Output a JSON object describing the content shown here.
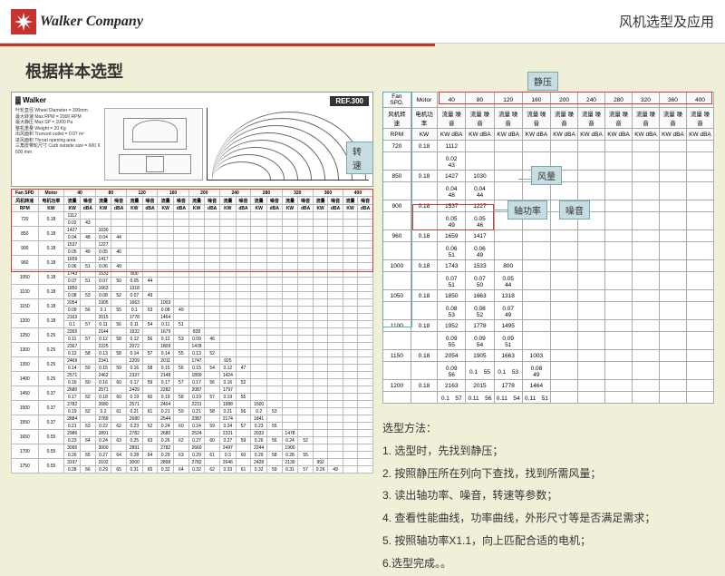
{
  "header": {
    "company": "Walker Company",
    "right_text": "风机选型及应用"
  },
  "title": "根据样本选型",
  "diagram": {
    "brand": "Walker",
    "ref": "REF.300",
    "specs": "叶轮直径 Wheel Diameter = 300mm\n最大转速 Max RPM = 2000 RPM\n最大静压 Max SP = 1000 Pa\n整机重量 Weight = 20 Kg\n出风面积 Trunced outlet = 0.07 m²\n进风面积 Throat opening area\n三角皮带轮尺寸 Curb outside size = 600 X 600 mm"
  },
  "tags": {
    "zhuansu": "转速",
    "jingya": "静压",
    "fengliang": "风量",
    "zhougl": "轴功率",
    "zaoyin": "噪音"
  },
  "right_table": {
    "headers": [
      "Fan SPD.",
      "Motor",
      "40",
      "80",
      "120",
      "160",
      "200",
      "240",
      "280",
      "320",
      "360",
      "400"
    ],
    "sub1": [
      "风机转速",
      "电机功率",
      "流量 噪音",
      "流量 噪音",
      "流量 噪音",
      "流量 噪音",
      "流量 噪音",
      "流量 噪音",
      "流量 噪音",
      "流量 噪音",
      "流量 噪音",
      "流量 噪音"
    ],
    "sub2": [
      "RPM",
      "KW",
      "KW dBA",
      "KW dBA",
      "KW dBA",
      "KW dBA",
      "KW dBA",
      "KW dBA",
      "KW dBA",
      "KW dBA",
      "KW dBA",
      "KW dBA"
    ],
    "rows": [
      [
        "720",
        "0.18",
        "1112",
        "",
        "",
        "",
        "",
        "",
        "",
        "",
        "",
        ""
      ],
      [
        "",
        "",
        "0.02　43",
        "",
        "",
        "",
        "",
        "",
        "",
        "",
        "",
        ""
      ],
      [
        "850",
        "0.18",
        "1427",
        "1030",
        "",
        "",
        "",
        "",
        "",
        "",
        "",
        ""
      ],
      [
        "",
        "",
        "0.04　48",
        "0.04　44",
        "",
        "",
        "",
        "",
        "",
        "",
        "",
        ""
      ],
      [
        "900",
        "0.18",
        "1537",
        "1227",
        "",
        "",
        "",
        "",
        "",
        "",
        "",
        ""
      ],
      [
        "",
        "",
        "0.05　49",
        "0.05　46",
        "",
        "",
        "",
        "",
        "",
        "",
        "",
        ""
      ],
      [
        "960",
        "0.18",
        "1659",
        "1417",
        "",
        "",
        "",
        "",
        "",
        "",
        "",
        ""
      ],
      [
        "",
        "",
        "0.06　51",
        "0.06　49",
        "",
        "",
        "",
        "",
        "",
        "",
        "",
        ""
      ],
      [
        "1000",
        "0.18",
        "1743",
        "1533",
        "800",
        "",
        "",
        "",
        "",
        "",
        "",
        ""
      ],
      [
        "",
        "",
        "0.07　51",
        "0.07　50",
        "0.05　44",
        "",
        "",
        "",
        "",
        "",
        "",
        ""
      ],
      [
        "1050",
        "0.18",
        "1850",
        "1663",
        "1318",
        "",
        "",
        "",
        "",
        "",
        "",
        ""
      ],
      [
        "",
        "",
        "0.08　53",
        "0.08　52",
        "0.07　49",
        "",
        "",
        "",
        "",
        "",
        "",
        ""
      ],
      [
        "1100",
        "0.18",
        "1952",
        "1778",
        "1495",
        "",
        "",
        "",
        "",
        "",
        "",
        ""
      ],
      [
        "",
        "",
        "0.09　55",
        "0.09　54",
        "0.09　51",
        "",
        "",
        "",
        "",
        "",
        "",
        ""
      ],
      [
        "1150",
        "0.18",
        "2054",
        "1905",
        "1663",
        "1003",
        "",
        "",
        "",
        "",
        "",
        ""
      ],
      [
        "",
        "",
        "0.09　56",
        "0.1　55",
        "0.1　53",
        "0.08　49",
        "",
        "",
        "",
        "",
        "",
        ""
      ],
      [
        "1200",
        "0.18",
        "2163",
        "2015",
        "1778",
        "1464",
        "",
        "",
        "",
        "",
        "",
        ""
      ],
      [
        "",
        "",
        "0.1　57",
        "0.11　56",
        "0.11　54",
        "0.11　51",
        "",
        "",
        "",
        "",
        "",
        ""
      ]
    ]
  },
  "instructions": {
    "title": "选型方法：",
    "items": [
      "1. 选型时，先找到静压；",
      "2. 按照静压所在列向下查找，找到所需风量；",
      "3. 读出轴功率、噪音，转速等参数；",
      "4. 查看性能曲线，功率曲线，外形尺寸等是否满足需求；",
      "5. 按照轴功率X1.1，向上匹配合适的电机；",
      "6.选型完成。。"
    ]
  },
  "left_table": {
    "headers": [
      "Fan SPD",
      "Motor",
      "40",
      "80",
      "120",
      "160",
      "200",
      "240",
      "280",
      "320",
      "360",
      "400"
    ],
    "rpms": [
      "720",
      "850",
      "900",
      "960",
      "1050",
      "1100",
      "1150",
      "1200",
      "1250",
      "1300",
      "1350",
      "1400",
      "1450",
      "1500",
      "1550",
      "1650",
      "1700",
      "1750"
    ]
  },
  "colors": {
    "bg": "#f0efd8",
    "red": "#c5342e",
    "box_red": "#d93838",
    "cyan": "#4db3b3",
    "tag_bg": "#c7dde2"
  }
}
